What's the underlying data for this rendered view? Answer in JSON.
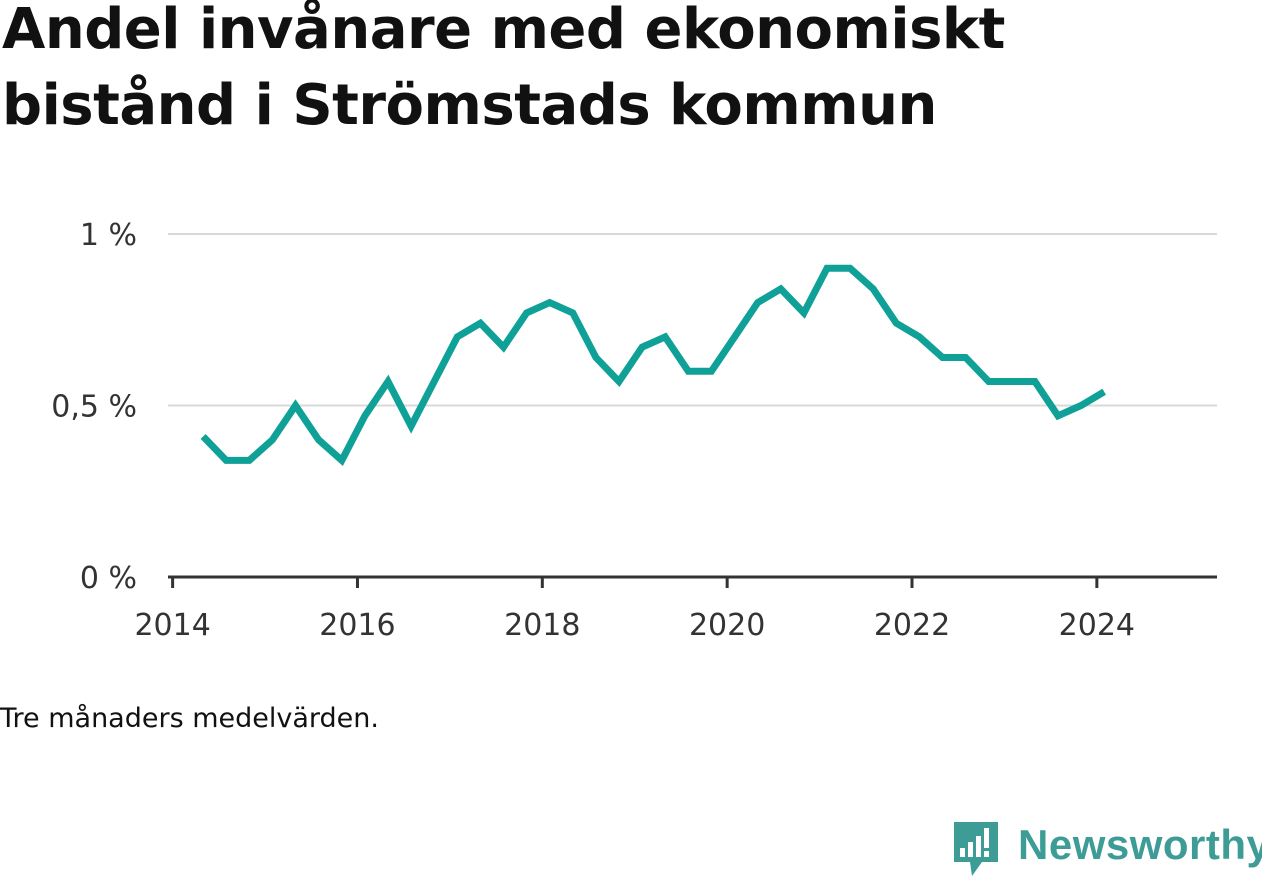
{
  "title": "Andel invånare med ekonomiskt bistånd i Strömstads kommun",
  "note": "Tre månaders medelvärden.",
  "brand": {
    "name": "Newsworthy",
    "color": "#3e9c96",
    "icon": "bar-chart-speech-bubble-icon"
  },
  "chart_data": {
    "type": "line",
    "title": "Andel invånare med ekonomiskt bistånd i Strömstads kommun",
    "xlabel": "",
    "ylabel": "",
    "xlim": [
      2013.95,
      2025.3
    ],
    "ylim": [
      0,
      1
    ],
    "grid": true,
    "line_color": "#0fa197",
    "x_ticks": [
      {
        "value": 2014,
        "label": "2014"
      },
      {
        "value": 2016,
        "label": "2016"
      },
      {
        "value": 2018,
        "label": "2018"
      },
      {
        "value": 2020,
        "label": "2020"
      },
      {
        "value": 2022,
        "label": "2022"
      },
      {
        "value": 2024,
        "label": "2024"
      }
    ],
    "y_ticks": [
      {
        "value": 0,
        "label": "0 %"
      },
      {
        "value": 0.5,
        "label": "0,5 %"
      },
      {
        "value": 1,
        "label": "1 %"
      }
    ],
    "series": [
      {
        "x": [
          2014.33,
          2014.58,
          2014.83,
          2015.08,
          2015.33,
          2015.58,
          2015.83,
          2016.08,
          2016.33,
          2016.58,
          2016.83,
          2017.08,
          2017.33,
          2017.58,
          2017.83,
          2018.08,
          2018.33,
          2018.58,
          2018.83,
          2019.08,
          2019.33,
          2019.58,
          2019.83,
          2020.08,
          2020.33,
          2020.58,
          2020.83,
          2021.08,
          2021.33,
          2021.58,
          2021.83,
          2022.08,
          2022.33,
          2022.58,
          2022.83,
          2023.08,
          2023.33,
          2023.58,
          2023.83,
          2024.08
        ],
        "values": [
          0.41,
          0.34,
          0.34,
          0.4,
          0.5,
          0.4,
          0.34,
          0.47,
          0.57,
          0.44,
          0.57,
          0.7,
          0.74,
          0.67,
          0.77,
          0.8,
          0.77,
          0.64,
          0.57,
          0.67,
          0.7,
          0.6,
          0.6,
          0.7,
          0.8,
          0.84,
          0.77,
          0.9,
          0.9,
          0.84,
          0.74,
          0.7,
          0.64,
          0.64,
          0.57,
          0.57,
          0.57,
          0.47,
          0.5,
          0.54
        ]
      }
    ]
  }
}
